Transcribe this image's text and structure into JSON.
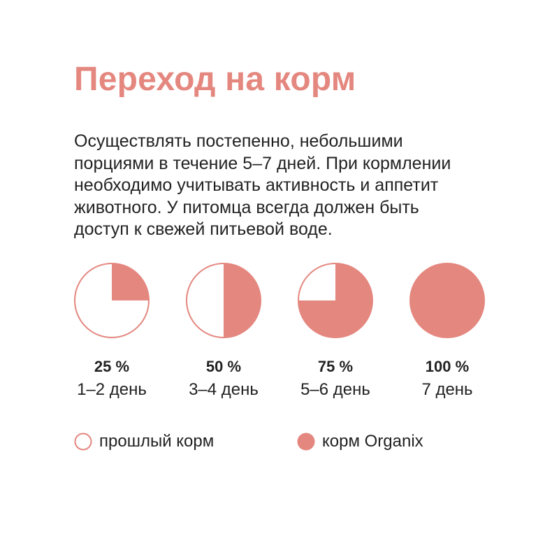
{
  "colors": {
    "accent": "#e4877f",
    "text": "#222222",
    "background": "#ffffff"
  },
  "title": "Переход на корм",
  "description_lines": [
    "Осуществлять постепенно, небольшими",
    "порциями в течение 5–7 дней. При кормлении",
    "необходимо учитывать активность и аппетит",
    "животного. У питомца всегда должен быть",
    "доступ к свежей питьевой воде."
  ],
  "stages": [
    {
      "fraction": 0.25,
      "percent_label": "25 %",
      "days_label": "1–2 день"
    },
    {
      "fraction": 0.5,
      "percent_label": "50 %",
      "days_label": "3–4 день"
    },
    {
      "fraction": 0.75,
      "percent_label": "75 %",
      "days_label": "5–6 день"
    },
    {
      "fraction": 1.0,
      "percent_label": "100 %",
      "days_label": "7 день"
    }
  ],
  "legend": {
    "old": {
      "label": "прошлый корм",
      "icon": "empty-circle-icon"
    },
    "new": {
      "label": "корм Organix",
      "icon": "filled-circle-icon"
    }
  }
}
